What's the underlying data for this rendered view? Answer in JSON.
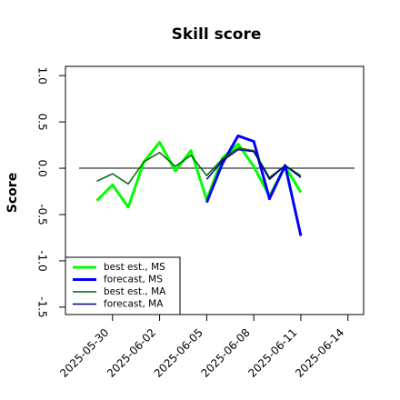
{
  "chart_data": {
    "type": "line",
    "title": "Skill score",
    "y_label": "Score",
    "x": [
      "2025-05-29",
      "2025-05-30",
      "2025-05-31",
      "2025-06-01",
      "2025-06-02",
      "2025-06-03",
      "2025-06-04",
      "2025-06-05",
      "2025-06-06",
      "2025-06-07",
      "2025-06-08",
      "2025-06-09",
      "2025-06-10",
      "2025-06-11"
    ],
    "series": [
      {
        "name": "best est., MS",
        "color": "#00ff00",
        "width": 3,
        "values": [
          -0.35,
          -0.18,
          -0.42,
          0.07,
          0.28,
          -0.03,
          0.19,
          -0.34,
          0.11,
          0.26,
          0.02,
          -0.3,
          0.02,
          -0.26
        ]
      },
      {
        "name": "forecast, MS",
        "color": "#0000ff",
        "width": 3,
        "values": [
          null,
          null,
          null,
          null,
          null,
          null,
          null,
          -0.37,
          0.05,
          0.35,
          0.29,
          -0.33,
          0.03,
          -0.73
        ]
      },
      {
        "name": "best est., MA",
        "color": "#006400",
        "width": 1.5,
        "values": [
          -0.14,
          -0.06,
          -0.17,
          0.07,
          0.17,
          0.02,
          0.14,
          -0.08,
          0.1,
          0.22,
          0.19,
          -0.1,
          0.03,
          -0.08
        ]
      },
      {
        "name": "forecast, MA",
        "color": "#00008b",
        "width": 1.5,
        "values": [
          null,
          null,
          null,
          null,
          null,
          null,
          null,
          -0.12,
          0.08,
          0.2,
          0.18,
          -0.12,
          0.03,
          -0.1
        ]
      }
    ],
    "xlim": [
      "2025-05-27",
      "2025-06-15"
    ],
    "xticks": [
      "2025-05-30",
      "2025-06-02",
      "2025-06-05",
      "2025-06-08",
      "2025-06-11",
      "2025-06-14"
    ],
    "xtick_colors": [
      "#000000",
      "#000000",
      "#008000",
      "#000000",
      "#000000",
      "#000000"
    ],
    "ylim": [
      -1.58,
      1.1
    ],
    "yticks": [
      -1.5,
      {
        "value": -1,
        "label": "-1.0"
      },
      -0.5,
      {
        "value": 0,
        "label": "0.0"
      },
      0.5,
      {
        "value": 1,
        "label": "1.0"
      }
    ],
    "reference_line": 0,
    "legend": "bottom-left"
  }
}
